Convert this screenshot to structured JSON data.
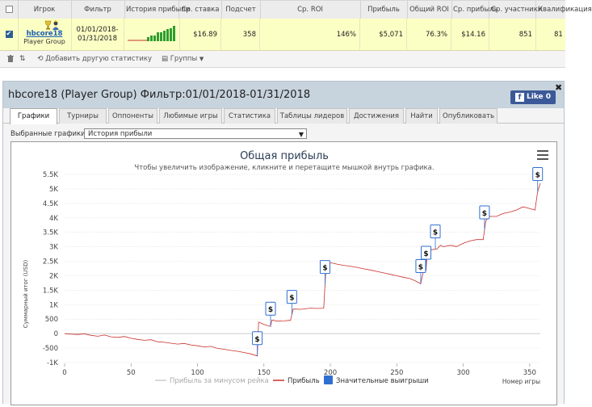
{
  "table": {
    "headers": [
      "Игрок",
      "Фильтр",
      "История прибыли",
      "Ср. ставка",
      "Подсчет",
      "Ср. ROI",
      "Прибыль",
      "Общий ROI",
      "Ср. прибыль",
      "Ср. участники",
      "Квалификация"
    ],
    "row": {
      "player_name": "hbcore18",
      "player_group": "Player Group",
      "filter": "01/01/2018-01/31/2018",
      "avg_stake": "$16.89",
      "count": "358",
      "avg_roi": "146%",
      "profit": "$5,071",
      "total_roi": "76.3%",
      "avg_profit": "$14.16",
      "avg_entrants": "851",
      "qualification": "81"
    }
  },
  "toolbar": {
    "add_stat": "Добавить другую статистику",
    "groups": "Группы"
  },
  "panel": {
    "title": "hbcore18 (Player Group) Фильтр:01/01/2018-01/31/2018",
    "like": "Like 0",
    "tabs": [
      "Графики",
      "Турниры",
      "Оппоненты",
      "Любимые игры",
      "Статистика",
      "Таблицы лидеров",
      "Достижения",
      "Найти",
      "Опубликовать"
    ],
    "active_tab": "Графики",
    "chart_select_label": "Выбранные графики:",
    "chart_select_value": "История прибыли"
  },
  "colors": {
    "profit_line": "#c9302c",
    "rake_line": "#cccccc",
    "big_win": "#2f6fd1",
    "row_highlight": "#fcffc4",
    "panel_header": "#c7d3dd"
  },
  "chart_data": {
    "type": "line",
    "title": "Общая прибыль",
    "subtitle": "Чтобы увеличить изображение, кликните и перетащите мышкой внутрь графика.",
    "xlabel": "Номер игры",
    "ylabel": "Суммарный итог (USD)",
    "xlim": [
      0,
      358
    ],
    "ylim": [
      -1000,
      5500
    ],
    "x_ticks": [
      "0",
      "50",
      "100",
      "150",
      "200",
      "250",
      "300",
      "350"
    ],
    "y_ticks": [
      "-1K",
      "-500",
      "0",
      "500",
      "1K",
      "1.5K",
      "2K",
      "2.5K",
      "3K",
      "3.5K",
      "4K",
      "4.5K",
      "5K",
      "5.5K"
    ],
    "grid": true,
    "legend_position": "bottom",
    "series": [
      {
        "name": "Прибыль",
        "points": [
          [
            0,
            0
          ],
          [
            5,
            -20
          ],
          [
            10,
            -30
          ],
          [
            15,
            -10
          ],
          [
            20,
            -60
          ],
          [
            25,
            -90
          ],
          [
            30,
            -50
          ],
          [
            35,
            -110
          ],
          [
            40,
            -130
          ],
          [
            45,
            -100
          ],
          [
            50,
            -160
          ],
          [
            55,
            -200
          ],
          [
            60,
            -230
          ],
          [
            65,
            -210
          ],
          [
            70,
            -280
          ],
          [
            75,
            -300
          ],
          [
            80,
            -330
          ],
          [
            85,
            -360
          ],
          [
            90,
            -340
          ],
          [
            95,
            -390
          ],
          [
            100,
            -420
          ],
          [
            105,
            -460
          ],
          [
            110,
            -440
          ],
          [
            115,
            -510
          ],
          [
            120,
            -540
          ],
          [
            125,
            -580
          ],
          [
            130,
            -610
          ],
          [
            135,
            -650
          ],
          [
            140,
            -700
          ],
          [
            145,
            -770
          ],
          [
            146,
            400
          ],
          [
            150,
            320
          ],
          [
            155,
            250
          ],
          [
            156,
            470
          ],
          [
            160,
            430
          ],
          [
            165,
            440
          ],
          [
            170,
            460
          ],
          [
            172,
            850
          ],
          [
            178,
            840
          ],
          [
            185,
            880
          ],
          [
            190,
            870
          ],
          [
            195,
            880
          ],
          [
            197,
            2500
          ],
          [
            200,
            2450
          ],
          [
            205,
            2400
          ],
          [
            210,
            2360
          ],
          [
            215,
            2330
          ],
          [
            220,
            2290
          ],
          [
            225,
            2240
          ],
          [
            230,
            2200
          ],
          [
            235,
            2150
          ],
          [
            240,
            2100
          ],
          [
            245,
            2050
          ],
          [
            250,
            2000
          ],
          [
            255,
            1950
          ],
          [
            260,
            1900
          ],
          [
            265,
            1800
          ],
          [
            268,
            1720
          ],
          [
            270,
            2150
          ],
          [
            272,
            2180
          ],
          [
            273,
            2850
          ],
          [
            276,
            2900
          ],
          [
            280,
            2920
          ],
          [
            283,
            3050
          ],
          [
            285,
            3000
          ],
          [
            290,
            3050
          ],
          [
            295,
            3010
          ],
          [
            300,
            3120
          ],
          [
            305,
            3200
          ],
          [
            310,
            3250
          ],
          [
            315,
            3250
          ],
          [
            317,
            3900
          ],
          [
            320,
            4050
          ],
          [
            325,
            4050
          ],
          [
            330,
            4150
          ],
          [
            335,
            4200
          ],
          [
            340,
            4270
          ],
          [
            345,
            4380
          ],
          [
            350,
            4320
          ],
          [
            354,
            4270
          ],
          [
            356,
            4900
          ],
          [
            358,
            5200
          ]
        ]
      },
      {
        "name": "Прибыль за минусом рейка"
      },
      {
        "name": "Значительные выигрыши",
        "x": [
          145,
          155,
          171,
          196,
          268,
          272,
          279,
          316,
          356
        ]
      }
    ]
  }
}
